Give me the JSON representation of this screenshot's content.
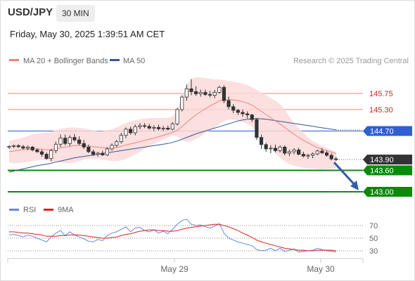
{
  "header": {
    "symbol": "USD/JPY",
    "timeframe": "30 MIN",
    "datetime": "Friday, May 30, 2025 1:39:51 AM CET"
  },
  "copyright": "Research © 2025 Trading Central",
  "colors": {
    "bollinger": "#f08080",
    "bollinger_fill": "#fcd9d9",
    "ma50": "#34569c",
    "resistance": "#f08080",
    "pivot": "#2f5fd0",
    "support": "#0a8a0a",
    "last": "#333333",
    "arrow": "#2e5ea8",
    "rsi": "#6688dd",
    "rsi_ma": "#dd2222"
  },
  "chart_data": [
    {
      "type": "candlestick",
      "legend": [
        {
          "label": "MA 20 + Bollinger Bands",
          "color": "#f08080"
        },
        {
          "label": "MA 50",
          "color": "#34569c"
        }
      ],
      "x_ticks": [
        "May 29",
        "May 30"
      ],
      "y_range": [
        142.95,
        146.25
      ],
      "levels": [
        {
          "value": 145.75,
          "label": "145.75",
          "kind": "resistance"
        },
        {
          "value": 145.3,
          "label": "145.30",
          "kind": "resistance"
        },
        {
          "value": 144.7,
          "label": "144.70",
          "kind": "pivot"
        },
        {
          "value": 143.9,
          "label": "143.90",
          "kind": "last"
        },
        {
          "value": 143.6,
          "label": "143.60",
          "kind": "support"
        },
        {
          "value": 143.0,
          "label": "143.00",
          "kind": "support"
        }
      ],
      "ohlc": [
        [
          144.25,
          144.3,
          144.2,
          144.27
        ],
        [
          144.27,
          144.32,
          144.22,
          144.29
        ],
        [
          144.29,
          144.33,
          144.23,
          144.26
        ],
        [
          144.26,
          144.31,
          144.18,
          144.22
        ],
        [
          144.22,
          144.29,
          144.16,
          144.25
        ],
        [
          144.25,
          144.28,
          144.13,
          144.17
        ],
        [
          144.17,
          144.22,
          144.09,
          144.12
        ],
        [
          144.12,
          144.18,
          143.98,
          144.05
        ],
        [
          144.05,
          144.1,
          143.9,
          143.93
        ],
        [
          143.93,
          144.2,
          143.85,
          144.15
        ],
        [
          144.15,
          144.4,
          144.08,
          144.33
        ],
        [
          144.33,
          144.6,
          144.25,
          144.5
        ],
        [
          144.5,
          144.6,
          144.3,
          144.35
        ],
        [
          144.35,
          144.58,
          144.28,
          144.52
        ],
        [
          144.52,
          144.62,
          144.4,
          144.45
        ],
        [
          144.45,
          144.55,
          144.3,
          144.35
        ],
        [
          144.35,
          144.45,
          144.2,
          144.25
        ],
        [
          144.25,
          144.32,
          144.08,
          144.12
        ],
        [
          144.12,
          144.18,
          144.0,
          144.05
        ],
        [
          144.05,
          144.12,
          143.98,
          144.08
        ],
        [
          144.08,
          144.15,
          144.0,
          144.03
        ],
        [
          144.03,
          144.25,
          144.0,
          144.2
        ],
        [
          144.2,
          144.35,
          144.15,
          144.3
        ],
        [
          144.3,
          144.45,
          144.25,
          144.4
        ],
        [
          144.4,
          144.65,
          144.35,
          144.58
        ],
        [
          144.58,
          144.8,
          144.5,
          144.75
        ],
        [
          144.75,
          144.82,
          144.6,
          144.65
        ],
        [
          144.65,
          144.88,
          144.58,
          144.82
        ],
        [
          144.82,
          144.92,
          144.75,
          144.85
        ],
        [
          144.85,
          144.92,
          144.78,
          144.83
        ],
        [
          144.83,
          144.9,
          144.74,
          144.78
        ],
        [
          144.78,
          144.86,
          144.7,
          144.8
        ],
        [
          144.8,
          144.88,
          144.72,
          144.76
        ],
        [
          144.76,
          144.84,
          144.7,
          144.78
        ],
        [
          144.78,
          144.85,
          144.72,
          144.75
        ],
        [
          144.75,
          144.95,
          144.72,
          144.9
        ],
        [
          144.9,
          145.35,
          144.85,
          145.3
        ],
        [
          145.3,
          145.7,
          145.25,
          145.65
        ],
        [
          145.65,
          146.0,
          145.55,
          145.88
        ],
        [
          145.88,
          146.15,
          145.7,
          145.8
        ],
        [
          145.8,
          145.95,
          145.68,
          145.74
        ],
        [
          145.74,
          145.86,
          145.66,
          145.78
        ],
        [
          145.78,
          145.86,
          145.68,
          145.72
        ],
        [
          145.72,
          145.82,
          145.64,
          145.7
        ],
        [
          145.7,
          145.85,
          145.62,
          145.78
        ],
        [
          145.78,
          145.97,
          145.74,
          145.92
        ],
        [
          145.92,
          145.98,
          145.48,
          145.55
        ],
        [
          145.55,
          145.66,
          145.3,
          145.38
        ],
        [
          145.38,
          145.45,
          145.2,
          145.28
        ],
        [
          145.28,
          145.32,
          145.15,
          145.22
        ],
        [
          145.22,
          145.3,
          145.1,
          145.18
        ],
        [
          145.18,
          145.25,
          145.05,
          145.15
        ],
        [
          145.15,
          145.18,
          144.95,
          145.02
        ],
        [
          145.02,
          145.06,
          144.45,
          144.52
        ],
        [
          144.52,
          144.6,
          144.2,
          144.32
        ],
        [
          144.32,
          144.38,
          144.12,
          144.2
        ],
        [
          144.2,
          144.3,
          144.08,
          144.22
        ],
        [
          144.22,
          144.32,
          144.1,
          144.15
        ],
        [
          144.15,
          144.3,
          144.1,
          144.25
        ],
        [
          144.25,
          144.3,
          144.02,
          144.08
        ],
        [
          144.08,
          144.18,
          144.0,
          144.12
        ],
        [
          144.12,
          144.22,
          144.05,
          144.17
        ],
        [
          144.17,
          144.23,
          144.02,
          144.05
        ],
        [
          144.05,
          144.12,
          143.96,
          144.0
        ],
        [
          144.0,
          144.06,
          143.92,
          144.02
        ],
        [
          144.02,
          144.1,
          143.94,
          144.06
        ],
        [
          144.06,
          144.18,
          144.02,
          144.14
        ],
        [
          144.14,
          144.22,
          144.05,
          144.09
        ],
        [
          144.09,
          144.15,
          143.98,
          144.02
        ],
        [
          144.02,
          144.08,
          143.88,
          143.92
        ],
        [
          143.92,
          143.98,
          143.86,
          143.9
        ]
      ],
      "ma20": [
        144.12,
        144.14,
        144.16,
        144.18,
        144.19,
        144.2,
        144.2,
        144.19,
        144.17,
        144.18,
        144.2,
        144.23,
        144.25,
        144.27,
        144.29,
        144.3,
        144.29,
        144.28,
        144.26,
        144.25,
        144.23,
        144.22,
        144.22,
        144.24,
        144.27,
        144.31,
        144.34,
        144.37,
        144.4,
        144.44,
        144.47,
        144.5,
        144.54,
        144.58,
        144.62,
        144.66,
        144.72,
        144.82,
        144.94,
        145.05,
        145.15,
        145.24,
        145.32,
        145.4,
        145.47,
        145.54,
        145.57,
        145.58,
        145.57,
        145.55,
        145.52,
        145.48,
        145.42,
        145.34,
        145.25,
        145.16,
        145.07,
        144.98,
        144.9,
        144.8,
        144.7,
        144.61,
        144.52,
        144.44,
        144.37,
        144.3,
        144.24,
        144.19,
        144.15,
        144.11,
        144.07
      ],
      "bb_upper": [
        144.42,
        144.45,
        144.48,
        144.52,
        144.56,
        144.6,
        144.62,
        144.64,
        144.65,
        144.68,
        144.72,
        144.76,
        144.78,
        144.8,
        144.8,
        144.79,
        144.77,
        144.75,
        144.72,
        144.7,
        144.7,
        144.72,
        144.75,
        144.8,
        144.86,
        144.92,
        144.96,
        145.0,
        145.03,
        145.05,
        145.06,
        145.06,
        145.06,
        145.06,
        145.07,
        145.1,
        145.3,
        145.65,
        145.98,
        146.15,
        146.2,
        146.2,
        146.18,
        146.16,
        146.14,
        146.14,
        146.12,
        146.1,
        146.08,
        146.05,
        146.02,
        145.98,
        145.92,
        145.85,
        145.78,
        145.7,
        145.62,
        145.55,
        145.45,
        145.3,
        145.1,
        144.92,
        144.78,
        144.65,
        144.52,
        144.42,
        144.35,
        144.28,
        144.22,
        144.17,
        144.12
      ],
      "bb_lower": [
        143.82,
        143.8,
        143.8,
        143.82,
        143.84,
        143.86,
        143.88,
        143.89,
        143.88,
        143.86,
        143.84,
        143.82,
        143.8,
        143.8,
        143.82,
        143.86,
        143.9,
        143.92,
        143.92,
        143.92,
        143.9,
        143.88,
        143.86,
        143.86,
        143.88,
        143.92,
        143.98,
        144.05,
        144.12,
        144.2,
        144.28,
        144.34,
        144.4,
        144.46,
        144.52,
        144.58,
        144.55,
        144.45,
        144.4,
        144.42,
        144.48,
        144.55,
        144.64,
        144.72,
        144.8,
        144.9,
        144.98,
        145.02,
        145.02,
        145.0,
        144.96,
        144.9,
        144.82,
        144.7,
        144.55,
        144.4,
        144.25,
        144.08,
        143.95,
        143.85,
        143.78,
        143.73,
        143.7,
        143.67,
        143.66,
        143.65,
        143.64,
        143.63,
        143.64,
        143.65,
        143.66
      ],
      "ma50": [
        143.55,
        143.58,
        143.61,
        143.64,
        143.67,
        143.7,
        143.73,
        143.75,
        143.77,
        143.8,
        143.83,
        143.86,
        143.89,
        143.92,
        143.95,
        143.97,
        143.99,
        144.01,
        144.03,
        144.05,
        144.07,
        144.09,
        144.11,
        144.13,
        144.15,
        144.17,
        144.19,
        144.21,
        144.23,
        144.25,
        144.27,
        144.29,
        144.31,
        144.33,
        144.35,
        144.38,
        144.42,
        144.47,
        144.52,
        144.57,
        144.62,
        144.66,
        144.7,
        144.74,
        144.78,
        144.82,
        144.86,
        144.9,
        144.94,
        144.98,
        145.01,
        145.03,
        145.04,
        145.05,
        145.04,
        145.03,
        145.01,
        144.99,
        144.97,
        144.95,
        144.93,
        144.91,
        144.89,
        144.87,
        144.85,
        144.83,
        144.81,
        144.79,
        144.77,
        144.75,
        144.73
      ]
    },
    {
      "type": "line",
      "legend": [
        {
          "label": "RSI",
          "color": "#6688dd"
        },
        {
          "label": "9MA",
          "color": "#dd2222"
        }
      ],
      "y_ticks": [
        {
          "value": 70,
          "label": "70"
        },
        {
          "value": 50,
          "label": "50"
        },
        {
          "value": 30,
          "label": "30"
        }
      ],
      "y_range": [
        15,
        85
      ],
      "rsi": [
        55,
        56,
        54,
        52,
        55,
        53,
        50,
        47,
        44,
        52,
        58,
        62,
        54,
        60,
        55,
        52,
        49,
        45,
        44,
        48,
        46,
        54,
        58,
        60,
        64,
        68,
        60,
        66,
        67,
        62,
        60,
        63,
        58,
        61,
        57,
        64,
        72,
        78,
        80,
        72,
        70,
        71,
        68,
        66,
        69,
        73,
        58,
        50,
        47,
        44,
        42,
        40,
        38,
        32,
        30,
        31,
        34,
        30,
        34,
        29,
        31,
        33,
        28,
        29,
        30,
        31,
        34,
        32,
        30,
        29,
        28
      ],
      "rsi_ma": [
        60,
        60,
        59,
        58,
        58,
        57,
        56,
        55,
        53,
        53,
        53,
        54,
        54,
        55,
        55,
        55,
        54,
        53,
        52,
        51,
        50,
        50,
        51,
        52,
        54,
        56,
        57,
        59,
        61,
        62,
        63,
        63,
        62,
        62,
        61,
        61,
        62,
        64,
        66,
        67,
        68,
        69,
        70,
        71,
        72,
        72,
        70,
        68,
        65,
        62,
        58,
        55,
        51,
        47,
        44,
        42,
        40,
        38,
        36,
        34,
        33,
        32,
        31,
        31,
        30,
        30,
        31,
        31,
        31,
        31,
        30
      ]
    }
  ]
}
